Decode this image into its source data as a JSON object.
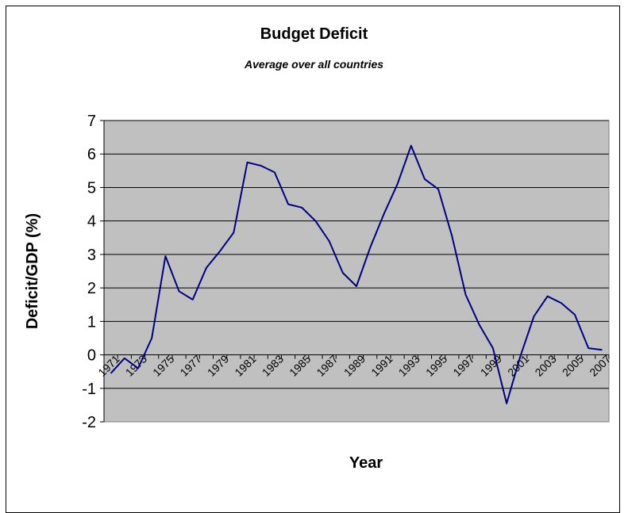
{
  "chart_data": {
    "type": "line",
    "title": "Budget Deficit",
    "subtitle": "Average over all countries",
    "xlabel": "Year",
    "ylabel": "Deficit/GDP (%)",
    "ylim": [
      -2,
      7
    ],
    "yticks": [
      "-2",
      "-1",
      "0",
      "1",
      "2",
      "3",
      "4",
      "5",
      "6",
      "7"
    ],
    "grid": "horizontal",
    "plot_background": "#c0c0c0",
    "line_color": "#000080",
    "x": [
      1971,
      1972,
      1973,
      1974,
      1975,
      1976,
      1977,
      1978,
      1979,
      1980,
      1981,
      1982,
      1983,
      1984,
      1985,
      1986,
      1987,
      1988,
      1989,
      1990,
      1991,
      1992,
      1993,
      1994,
      1995,
      1996,
      1997,
      1998,
      1999,
      2000,
      2001,
      2002,
      2003,
      2004,
      2005,
      2006,
      2007
    ],
    "xtick_labels": [
      "1971",
      "1973",
      "1975",
      "1977",
      "1979",
      "1981",
      "1983",
      "1985",
      "1987",
      "1989",
      "1991",
      "1993",
      "1995",
      "1997",
      "1999",
      "2001",
      "2003",
      "2005",
      "2007"
    ],
    "series": [
      {
        "values": [
          -0.55,
          -0.1,
          -0.4,
          0.5,
          2.95,
          1.9,
          1.65,
          2.6,
          3.1,
          3.65,
          5.75,
          5.65,
          5.45,
          4.5,
          4.4,
          4.0,
          3.4,
          2.45,
          2.05,
          3.2,
          4.2,
          5.1,
          6.25,
          5.25,
          4.95,
          3.55,
          1.8,
          0.9,
          0.2,
          -1.45,
          -0.05,
          1.15,
          1.75,
          1.55,
          1.2,
          0.2,
          0.15
        ]
      }
    ]
  }
}
